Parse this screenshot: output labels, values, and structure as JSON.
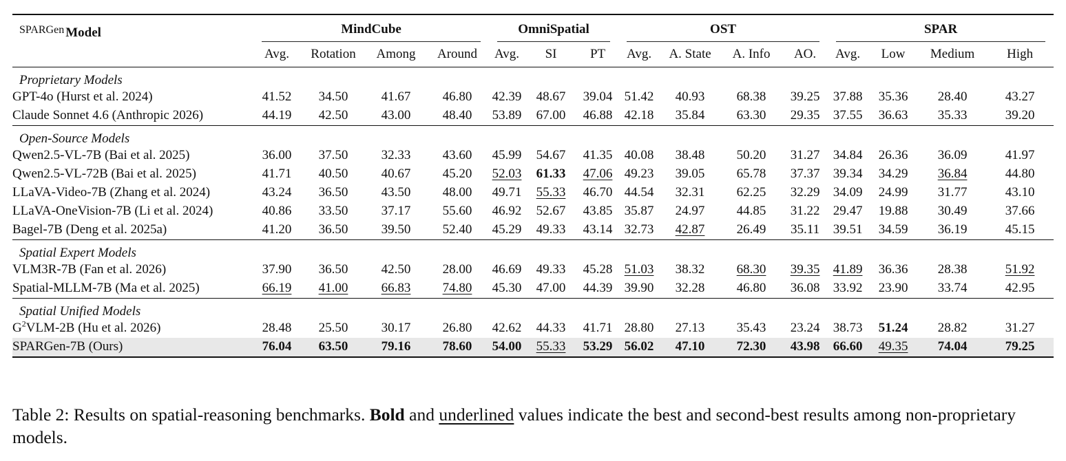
{
  "table": {
    "corner_label": "SPARGen",
    "model_header": "Model",
    "groups": [
      {
        "name": "MindCube",
        "columns": [
          "Avg.",
          "Rotation",
          "Among",
          "Around"
        ]
      },
      {
        "name": "OmniSpatial",
        "columns": [
          "Avg.",
          "SI",
          "PT"
        ]
      },
      {
        "name": "OST",
        "columns": [
          "Avg.",
          "A. State",
          "A. Info",
          "AO."
        ]
      },
      {
        "name": "SPAR",
        "columns": [
          "Avg.",
          "Low",
          "Medium",
          "High"
        ]
      }
    ],
    "sections": [
      {
        "title": "Proprietary Models",
        "rows": [
          {
            "model": "GPT-4o (Hurst et al. 2024)",
            "values": [
              "41.52",
              "34.50",
              "41.67",
              "46.80",
              "42.39",
              "48.67",
              "39.04",
              "51.42",
              "40.93",
              "68.38",
              "39.25",
              "37.88",
              "35.36",
              "28.40",
              "43.27"
            ],
            "bold": [],
            "underline": []
          },
          {
            "model": "Claude Sonnet 4.6 (Anthropic 2026)",
            "values": [
              "44.19",
              "42.50",
              "43.00",
              "48.40",
              "53.89",
              "67.00",
              "46.88",
              "42.18",
              "35.84",
              "63.30",
              "29.35",
              "37.55",
              "36.63",
              "35.33",
              "39.20"
            ],
            "bold": [],
            "underline": []
          }
        ]
      },
      {
        "title": "Open-Source Models",
        "rows": [
          {
            "model": "Qwen2.5-VL-7B (Bai et al. 2025)",
            "values": [
              "36.00",
              "37.50",
              "32.33",
              "43.60",
              "45.99",
              "54.67",
              "41.35",
              "40.08",
              "38.48",
              "50.20",
              "31.27",
              "34.84",
              "26.36",
              "36.09",
              "41.97"
            ],
            "bold": [],
            "underline": []
          },
          {
            "model": "Qwen2.5-VL-72B (Bai et al. 2025)",
            "values": [
              "41.71",
              "40.50",
              "40.67",
              "45.20",
              "52.03",
              "61.33",
              "47.06",
              "49.23",
              "39.05",
              "65.78",
              "37.37",
              "39.34",
              "34.29",
              "36.84",
              "44.80"
            ],
            "bold": [
              5
            ],
            "underline": [
              4,
              6,
              13
            ]
          },
          {
            "model": "LLaVA-Video-7B (Zhang et al. 2024)",
            "values": [
              "43.24",
              "36.50",
              "43.50",
              "48.00",
              "49.71",
              "55.33",
              "46.70",
              "44.54",
              "32.31",
              "62.25",
              "32.29",
              "34.09",
              "24.99",
              "31.77",
              "43.10"
            ],
            "bold": [],
            "underline": [
              5
            ]
          },
          {
            "model": "LLaVA-OneVision-7B (Li et al. 2024)",
            "values": [
              "40.86",
              "33.50",
              "37.17",
              "55.60",
              "46.92",
              "52.67",
              "43.85",
              "35.87",
              "24.97",
              "44.85",
              "31.22",
              "29.47",
              "19.88",
              "30.49",
              "37.66"
            ],
            "bold": [],
            "underline": []
          },
          {
            "model": "Bagel-7B (Deng et al. 2025a)",
            "values": [
              "41.20",
              "36.50",
              "39.50",
              "52.40",
              "45.29",
              "49.33",
              "43.14",
              "32.73",
              "42.87",
              "26.49",
              "35.11",
              "39.51",
              "34.59",
              "36.19",
              "45.15"
            ],
            "bold": [],
            "underline": [
              8
            ]
          }
        ]
      },
      {
        "title": "Spatial Expert Models",
        "rows": [
          {
            "model": "VLM3R-7B (Fan et al. 2026)",
            "values": [
              "37.90",
              "36.50",
              "42.50",
              "28.00",
              "46.69",
              "49.33",
              "45.28",
              "51.03",
              "38.32",
              "68.30",
              "39.35",
              "41.89",
              "36.36",
              "28.38",
              "51.92"
            ],
            "bold": [],
            "underline": [
              7,
              9,
              10,
              11,
              14
            ]
          },
          {
            "model": "Spatial-MLLM-7B (Ma et al. 2025)",
            "values": [
              "66.19",
              "41.00",
              "66.83",
              "74.80",
              "45.30",
              "47.00",
              "44.39",
              "39.90",
              "32.28",
              "46.80",
              "36.08",
              "33.92",
              "23.90",
              "33.74",
              "42.95"
            ],
            "bold": [],
            "underline": [
              0,
              1,
              2,
              3
            ]
          }
        ]
      },
      {
        "title": "Spatial Unified Models",
        "rows": [
          {
            "model_prefix": "G",
            "model_sup": "2",
            "model": "VLM-2B (Hu et al. 2026)",
            "values": [
              "28.48",
              "25.50",
              "30.17",
              "26.80",
              "42.62",
              "44.33",
              "41.71",
              "28.80",
              "27.13",
              "35.43",
              "23.24",
              "38.73",
              "51.24",
              "28.82",
              "31.27"
            ],
            "bold": [
              12
            ],
            "underline": []
          },
          {
            "model": "SPARGen-7B (Ours)",
            "ours": true,
            "values": [
              "76.04",
              "63.50",
              "79.16",
              "78.60",
              "54.00",
              "55.33",
              "53.29",
              "56.02",
              "47.10",
              "72.30",
              "43.98",
              "66.60",
              "49.35",
              "74.04",
              "79.25"
            ],
            "bold": [
              0,
              1,
              2,
              3,
              4,
              6,
              7,
              8,
              9,
              10,
              11,
              13,
              14
            ],
            "underline": [
              5,
              12
            ]
          }
        ]
      }
    ]
  },
  "caption": {
    "label": "Table 2: Results on spatial-reasoning benchmarks. ",
    "bold_word": "Bold",
    "and_word": " and ",
    "underline_word": "underlined",
    "rest": " values indicate the best and second-best results among non-proprietary models."
  }
}
